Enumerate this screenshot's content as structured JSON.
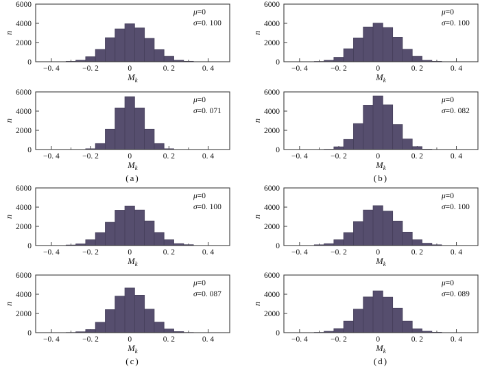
{
  "figure": {
    "background": "#ffffff",
    "axis_color": "#3a3a3a",
    "text_color": "#111111",
    "bar_fill": "#564e6e",
    "bar_edge": "#453f5a",
    "ylabel": "n",
    "xlabel_main": "M",
    "xlabel_sub": "k",
    "xlim": [
      -0.48,
      0.51
    ],
    "ylim": [
      0,
      6000
    ],
    "yticks": [
      {
        "v": 0,
        "label": "0"
      },
      {
        "v": 2000,
        "label": "2000"
      },
      {
        "v": 4000,
        "label": "4000"
      },
      {
        "v": 6000,
        "label": "6000"
      }
    ],
    "xticks": [
      {
        "v": -0.4,
        "label": "−0. 4"
      },
      {
        "v": -0.2,
        "label": "−0. 2"
      },
      {
        "v": 0,
        "label": "0"
      },
      {
        "v": 0.2,
        "label": "0. 2"
      },
      {
        "v": 0.4,
        "label": "0. 4"
      }
    ],
    "x_minor": [
      -0.3,
      -0.1,
      0.1,
      0.3
    ],
    "group_labels": [
      "(a)",
      "(b)",
      "(c)",
      "(d)"
    ]
  },
  "chart_data": [
    {
      "id": "a1",
      "type": "histogram",
      "position": "row1-left",
      "mu_symbol": "μ",
      "mu_value": "=0",
      "sigma_symbol": "σ",
      "sigma_value": "=0. 100",
      "mu": 0,
      "sigma": 0.1,
      "bin_width": 0.05,
      "first_bin_center": -0.3,
      "counts": [
        40,
        160,
        520,
        1280,
        2500,
        3420,
        3950,
        3520,
        2440,
        1260,
        560,
        160,
        45
      ]
    },
    {
      "id": "b1",
      "type": "histogram",
      "position": "row1-right",
      "mu_symbol": "μ",
      "mu_value": "=0",
      "sigma_symbol": "σ",
      "sigma_value": "=0. 100",
      "mu": 0,
      "sigma": 0.1,
      "bin_width": 0.05,
      "first_bin_center": -0.3,
      "counts": [
        30,
        150,
        460,
        1350,
        2480,
        3620,
        4020,
        3560,
        2540,
        1300,
        560,
        150,
        40
      ]
    },
    {
      "id": "a2",
      "type": "histogram",
      "position": "row2-left",
      "mu_symbol": "μ",
      "mu_value": "=0",
      "sigma_symbol": "σ",
      "sigma_value": "=0. 071",
      "mu": 0,
      "sigma": 0.071,
      "bin_width": 0.05,
      "first_bin_center": -0.2,
      "counts": [
        80,
        620,
        2120,
        4330,
        5500,
        4330,
        2120,
        620,
        80
      ]
    },
    {
      "id": "b2",
      "type": "histogram",
      "position": "row2-right",
      "mu_symbol": "μ",
      "mu_value": "=0",
      "sigma_symbol": "σ",
      "sigma_value": "=0. 082",
      "mu": 0,
      "sigma": 0.082,
      "bin_width": 0.05,
      "first_bin_center": -0.25,
      "counts": [
        30,
        280,
        1050,
        2700,
        4610,
        5570,
        4650,
        2600,
        1100,
        300,
        40
      ]
    },
    {
      "id": "c1",
      "type": "histogram",
      "position": "row3-left",
      "mu_symbol": "μ",
      "mu_value": "=0",
      "sigma_symbol": "σ",
      "sigma_value": "=0. 100",
      "mu": 0,
      "sigma": 0.1,
      "bin_width": 0.05,
      "first_bin_center": -0.3,
      "counts": [
        60,
        170,
        600,
        1350,
        2420,
        3680,
        4120,
        3700,
        2560,
        1360,
        600,
        200,
        90
      ]
    },
    {
      "id": "d1",
      "type": "histogram",
      "position": "row3-right",
      "mu_symbol": "μ",
      "mu_value": "=0",
      "sigma_symbol": "σ",
      "sigma_value": "=0. 100",
      "mu": 0,
      "sigma": 0.1,
      "bin_width": 0.05,
      "first_bin_center": -0.3,
      "counts": [
        80,
        190,
        600,
        1350,
        2500,
        3700,
        4150,
        3580,
        2550,
        1400,
        600,
        240,
        80
      ]
    },
    {
      "id": "c2",
      "type": "histogram",
      "position": "row4-left",
      "mu_symbol": "μ",
      "mu_value": "=0",
      "sigma_symbol": "σ",
      "sigma_value": "=0. 087",
      "mu": 0,
      "sigma": 0.087,
      "bin_width": 0.05,
      "first_bin_center": -0.3,
      "counts": [
        20,
        90,
        320,
        1080,
        2400,
        3800,
        4650,
        3900,
        2450,
        1100,
        380,
        110,
        20
      ]
    },
    {
      "id": "d2",
      "type": "histogram",
      "position": "row4-right",
      "mu_symbol": "μ",
      "mu_value": "=0",
      "sigma_symbol": "σ",
      "sigma_value": "=0. 089",
      "mu": 0,
      "sigma": 0.089,
      "bin_width": 0.05,
      "first_bin_center": -0.3,
      "counts": [
        30,
        140,
        420,
        1200,
        2450,
        3720,
        4350,
        3700,
        2550,
        1200,
        400,
        150,
        40
      ]
    }
  ]
}
